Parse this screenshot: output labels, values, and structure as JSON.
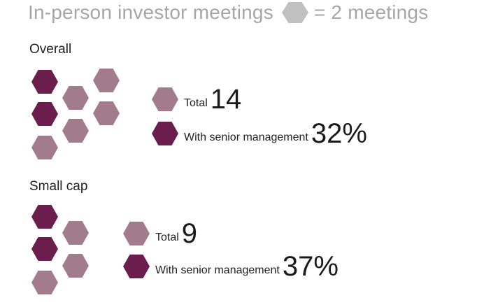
{
  "header": {
    "title": "In-person investor meetings",
    "legend_text": "= 2 meetings",
    "legend_color": "#c0c0c0"
  },
  "colors": {
    "total": "#a37c8c",
    "senior": "#6b1d4e"
  },
  "chart_data": [
    {
      "type": "pictogram",
      "title": "Overall",
      "unit": "2 meetings per hexagon",
      "total_label": "Total",
      "total_value": "14",
      "senior_label": "With senior management",
      "senior_value": "32%",
      "series": [
        {
          "name": "With senior management",
          "count": 2,
          "color": "#6b1d4e"
        },
        {
          "name": "Total",
          "count": 5,
          "color": "#a37c8c"
        }
      ]
    },
    {
      "type": "pictogram",
      "title": "Small cap",
      "unit": "2 meetings per hexagon",
      "total_label": "Total",
      "total_value": "9",
      "senior_label": "With senior management",
      "senior_value": "37%",
      "series": [
        {
          "name": "With senior management",
          "count": 2,
          "color": "#6b1d4e"
        },
        {
          "name": "Total",
          "count": 3,
          "color": "#a37c8c"
        }
      ]
    }
  ]
}
